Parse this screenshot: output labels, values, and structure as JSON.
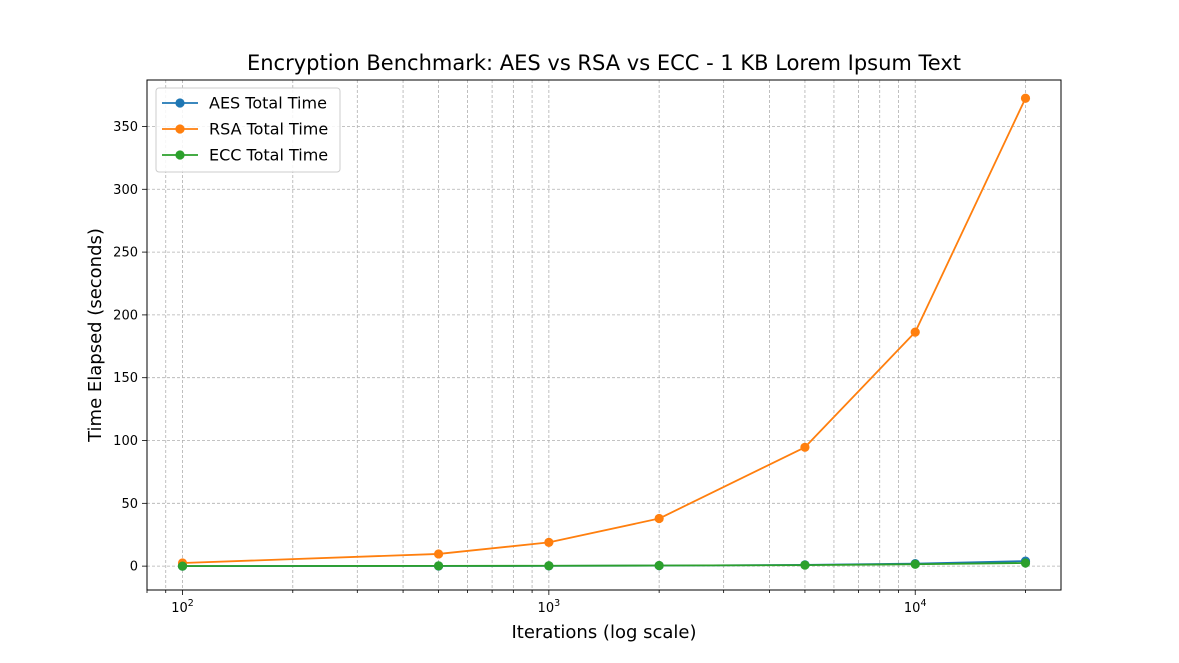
{
  "chart_data": {
    "type": "line",
    "title": "Encryption Benchmark: AES vs RSA vs ECC - 1 KB Lorem Ipsum Text",
    "xlabel": "Iterations (log scale)",
    "ylabel": "Time Elapsed (seconds)",
    "x_scale": "log",
    "xlim": [
      80,
      25000
    ],
    "ylim": [
      -19,
      387
    ],
    "x": [
      100,
      500,
      1000,
      2000,
      5000,
      10000,
      20000
    ],
    "x_ticks": [
      {
        "value": 100,
        "base": "10",
        "exp": "2"
      },
      {
        "value": 1000,
        "base": "10",
        "exp": "3"
      },
      {
        "value": 10000,
        "base": "10",
        "exp": "4"
      }
    ],
    "y_ticks": [
      0,
      50,
      100,
      150,
      200,
      250,
      300,
      350
    ],
    "grid": true,
    "legend_position": "top-left",
    "series": [
      {
        "name": "AES Total Time",
        "color": "#1f77b4",
        "values": [
          0.02,
          0.1,
          0.2,
          0.4,
          1.0,
          2.0,
          4.0
        ]
      },
      {
        "name": "RSA Total Time",
        "color": "#ff7f0e",
        "values": [
          2.5,
          9.7,
          18.9,
          37.9,
          94.6,
          186.3,
          372.5
        ]
      },
      {
        "name": "ECC Total Time",
        "color": "#2ca02c",
        "values": [
          0.05,
          0.2,
          0.3,
          0.5,
          0.8,
          1.5,
          2.5
        ]
      }
    ]
  }
}
